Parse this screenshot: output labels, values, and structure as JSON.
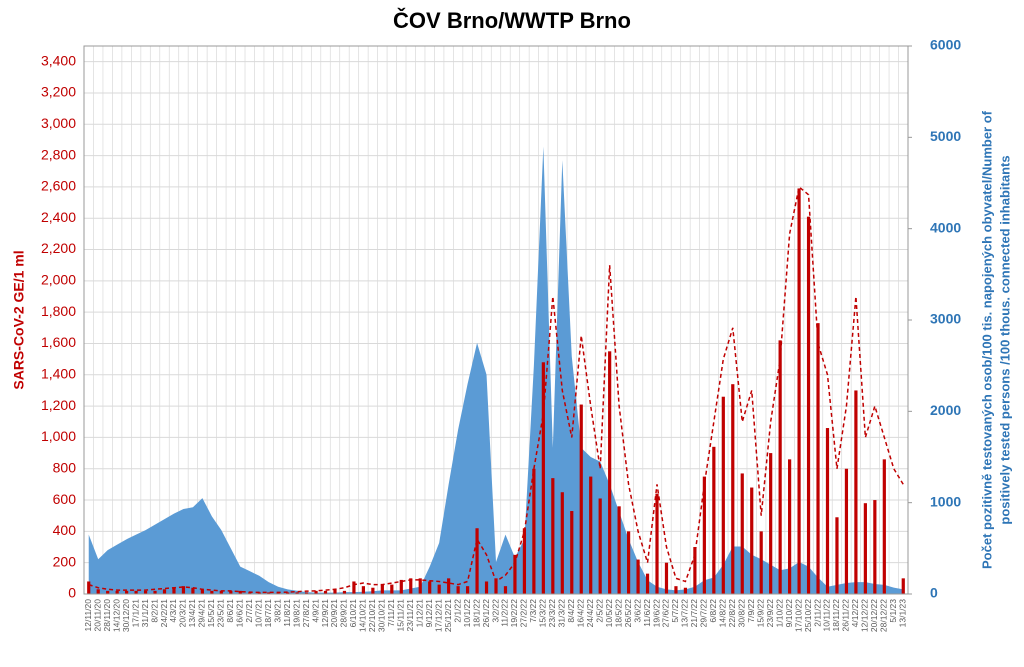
{
  "chart_data": {
    "type": "bar-line-area",
    "title": "ČOV Brno/WWTP Brno",
    "y_label": "SARS-CoV-2 GE/1 ml",
    "y2_label": [
      "Počet pozitivně testovaných osob/100 tis. napojených obyvatel/Number of",
      "positively tested persons /100 thous. connected inhabitants"
    ],
    "categories": [
      "12/11/20",
      "20/11/20",
      "28/11/20",
      "14/12/20",
      "30/12/20",
      "17/1/21",
      "31/1/21",
      "8/2/21",
      "24/2/21",
      "4/3/21",
      "20/3/21",
      "13/4/21",
      "29/4/21",
      "15/5/21",
      "23/5/21",
      "8/6/21",
      "16/6/21",
      "2/7/21",
      "10/7/21",
      "18/7/21",
      "3/8/21",
      "11/8/21",
      "19/8/21",
      "27/8/21",
      "4/9/21",
      "12/9/21",
      "20/9/21",
      "28/9/21",
      "6/10/21",
      "14/10/21",
      "22/10/21",
      "30/10/21",
      "7/11/21",
      "15/11/21",
      "23/11/21",
      "1/12/21",
      "9/12/21",
      "17/12/21",
      "25/12/21",
      "2/1/22",
      "10/1/22",
      "18/1/22",
      "26/1/22",
      "3/2/22",
      "11/2/22",
      "19/2/22",
      "27/2/22",
      "7/3/22",
      "15/3/22",
      "23/3/22",
      "31/3/22",
      "8/4/22",
      "16/4/22",
      "24/4/22",
      "2/5/22",
      "10/5/22",
      "18/5/22",
      "26/5/22",
      "3/6/22",
      "11/6/22",
      "19/6/22",
      "27/6/22",
      "5/7/22",
      "13/7/22",
      "21/7/22",
      "29/7/22",
      "6/8/22",
      "14/8/22",
      "22/8/22",
      "30/8/22",
      "7/9/22",
      "15/9/22",
      "23/9/22",
      "1/10/22",
      "9/10/22",
      "17/10/22",
      "25/10/22",
      "2/11/22",
      "10/11/22",
      "18/11/22",
      "26/11/22",
      "4/12/22",
      "12/12/22",
      "20/12/22",
      "28/12/22",
      "5/1/23",
      "13/1/23"
    ],
    "series": [
      {
        "kind": "area",
        "axis": "y2",
        "color": "#5b9bd5",
        "values": [
          650,
          380,
          480,
          540,
          600,
          650,
          700,
          760,
          820,
          880,
          930,
          950,
          1050,
          850,
          700,
          500,
          300,
          250,
          200,
          130,
          80,
          50,
          35,
          20,
          15,
          15,
          15,
          20,
          20,
          25,
          30,
          40,
          40,
          40,
          60,
          80,
          300,
          560,
          1200,
          1800,
          2300,
          2750,
          2400,
          350,
          650,
          400,
          600,
          2500,
          4900,
          1600,
          4750,
          2600,
          1600,
          1500,
          1450,
          1200,
          900,
          600,
          350,
          150,
          80,
          50,
          40,
          50,
          80,
          150,
          180,
          320,
          520,
          520,
          430,
          380,
          320,
          260,
          280,
          350,
          300,
          180,
          80,
          100,
          120,
          130,
          130,
          110,
          100,
          70,
          50
        ]
      },
      {
        "kind": "bar",
        "color": "#c00000",
        "values": [
          80,
          30,
          20,
          20,
          20,
          20,
          20,
          20,
          30,
          40,
          50,
          40,
          30,
          20,
          20,
          20,
          20,
          10,
          10,
          10,
          10,
          10,
          10,
          10,
          20,
          20,
          30,
          20,
          80,
          50,
          40,
          60,
          60,
          90,
          100,
          100,
          80,
          60,
          100,
          50,
          50,
          420,
          80,
          100,
          50,
          250,
          420,
          800,
          1480,
          740,
          650,
          530,
          1210,
          750,
          610,
          1550,
          560,
          400,
          220,
          130,
          640,
          200,
          50,
          40,
          300,
          750,
          940,
          1260,
          1340,
          770,
          680,
          400,
          900,
          1620,
          860,
          2590,
          2410,
          1730,
          1060,
          490,
          800,
          1300,
          580,
          600,
          860,
          null,
          100
        ]
      },
      {
        "kind": "dashed",
        "color": "#c00000",
        "values": [
          60,
          40,
          30,
          25,
          25,
          25,
          25,
          30,
          35,
          40,
          45,
          40,
          30,
          25,
          20,
          20,
          15,
          12,
          10,
          10,
          10,
          12,
          15,
          18,
          20,
          25,
          30,
          40,
          60,
          70,
          60,
          60,
          70,
          80,
          90,
          90,
          85,
          80,
          70,
          60,
          80,
          350,
          250,
          80,
          120,
          200,
          400,
          800,
          1150,
          1900,
          1300,
          1000,
          1650,
          1200,
          800,
          2100,
          1200,
          700,
          400,
          200,
          700,
          300,
          100,
          80,
          250,
          700,
          1100,
          1500,
          1700,
          1100,
          1300,
          500,
          1100,
          1500,
          2300,
          2600,
          2550,
          1600,
          1400,
          800,
          1200,
          1900,
          1000,
          1200,
          1000,
          800,
          700
        ]
      }
    ],
    "ylim": [
      0,
      3500
    ],
    "yticks": [
      0,
      200,
      400,
      600,
      800,
      {
        "value": 1000,
        "label": "1,000"
      },
      {
        "value": 1200,
        "label": "1,200"
      },
      {
        "value": 1400,
        "label": "1,400"
      },
      {
        "value": 1600,
        "label": "1,600"
      },
      {
        "value": 1800,
        "label": "1,800"
      },
      {
        "value": 2000,
        "label": "2,000"
      },
      {
        "value": 2200,
        "label": "2,200"
      },
      {
        "value": 2400,
        "label": "2,400"
      },
      {
        "value": 2600,
        "label": "2,600"
      },
      {
        "value": 2800,
        "label": "2,800"
      },
      {
        "value": 3000,
        "label": "3,000"
      },
      {
        "value": 3200,
        "label": "3,200"
      },
      {
        "value": 3400,
        "label": "3,400"
      }
    ],
    "y2lim": [
      0,
      6000
    ],
    "y2ticks": [
      0,
      1000,
      2000,
      3000,
      4000,
      5000,
      6000
    ],
    "grid": true,
    "y_color": "#c00000",
    "y2_color": "#2e75b6"
  }
}
